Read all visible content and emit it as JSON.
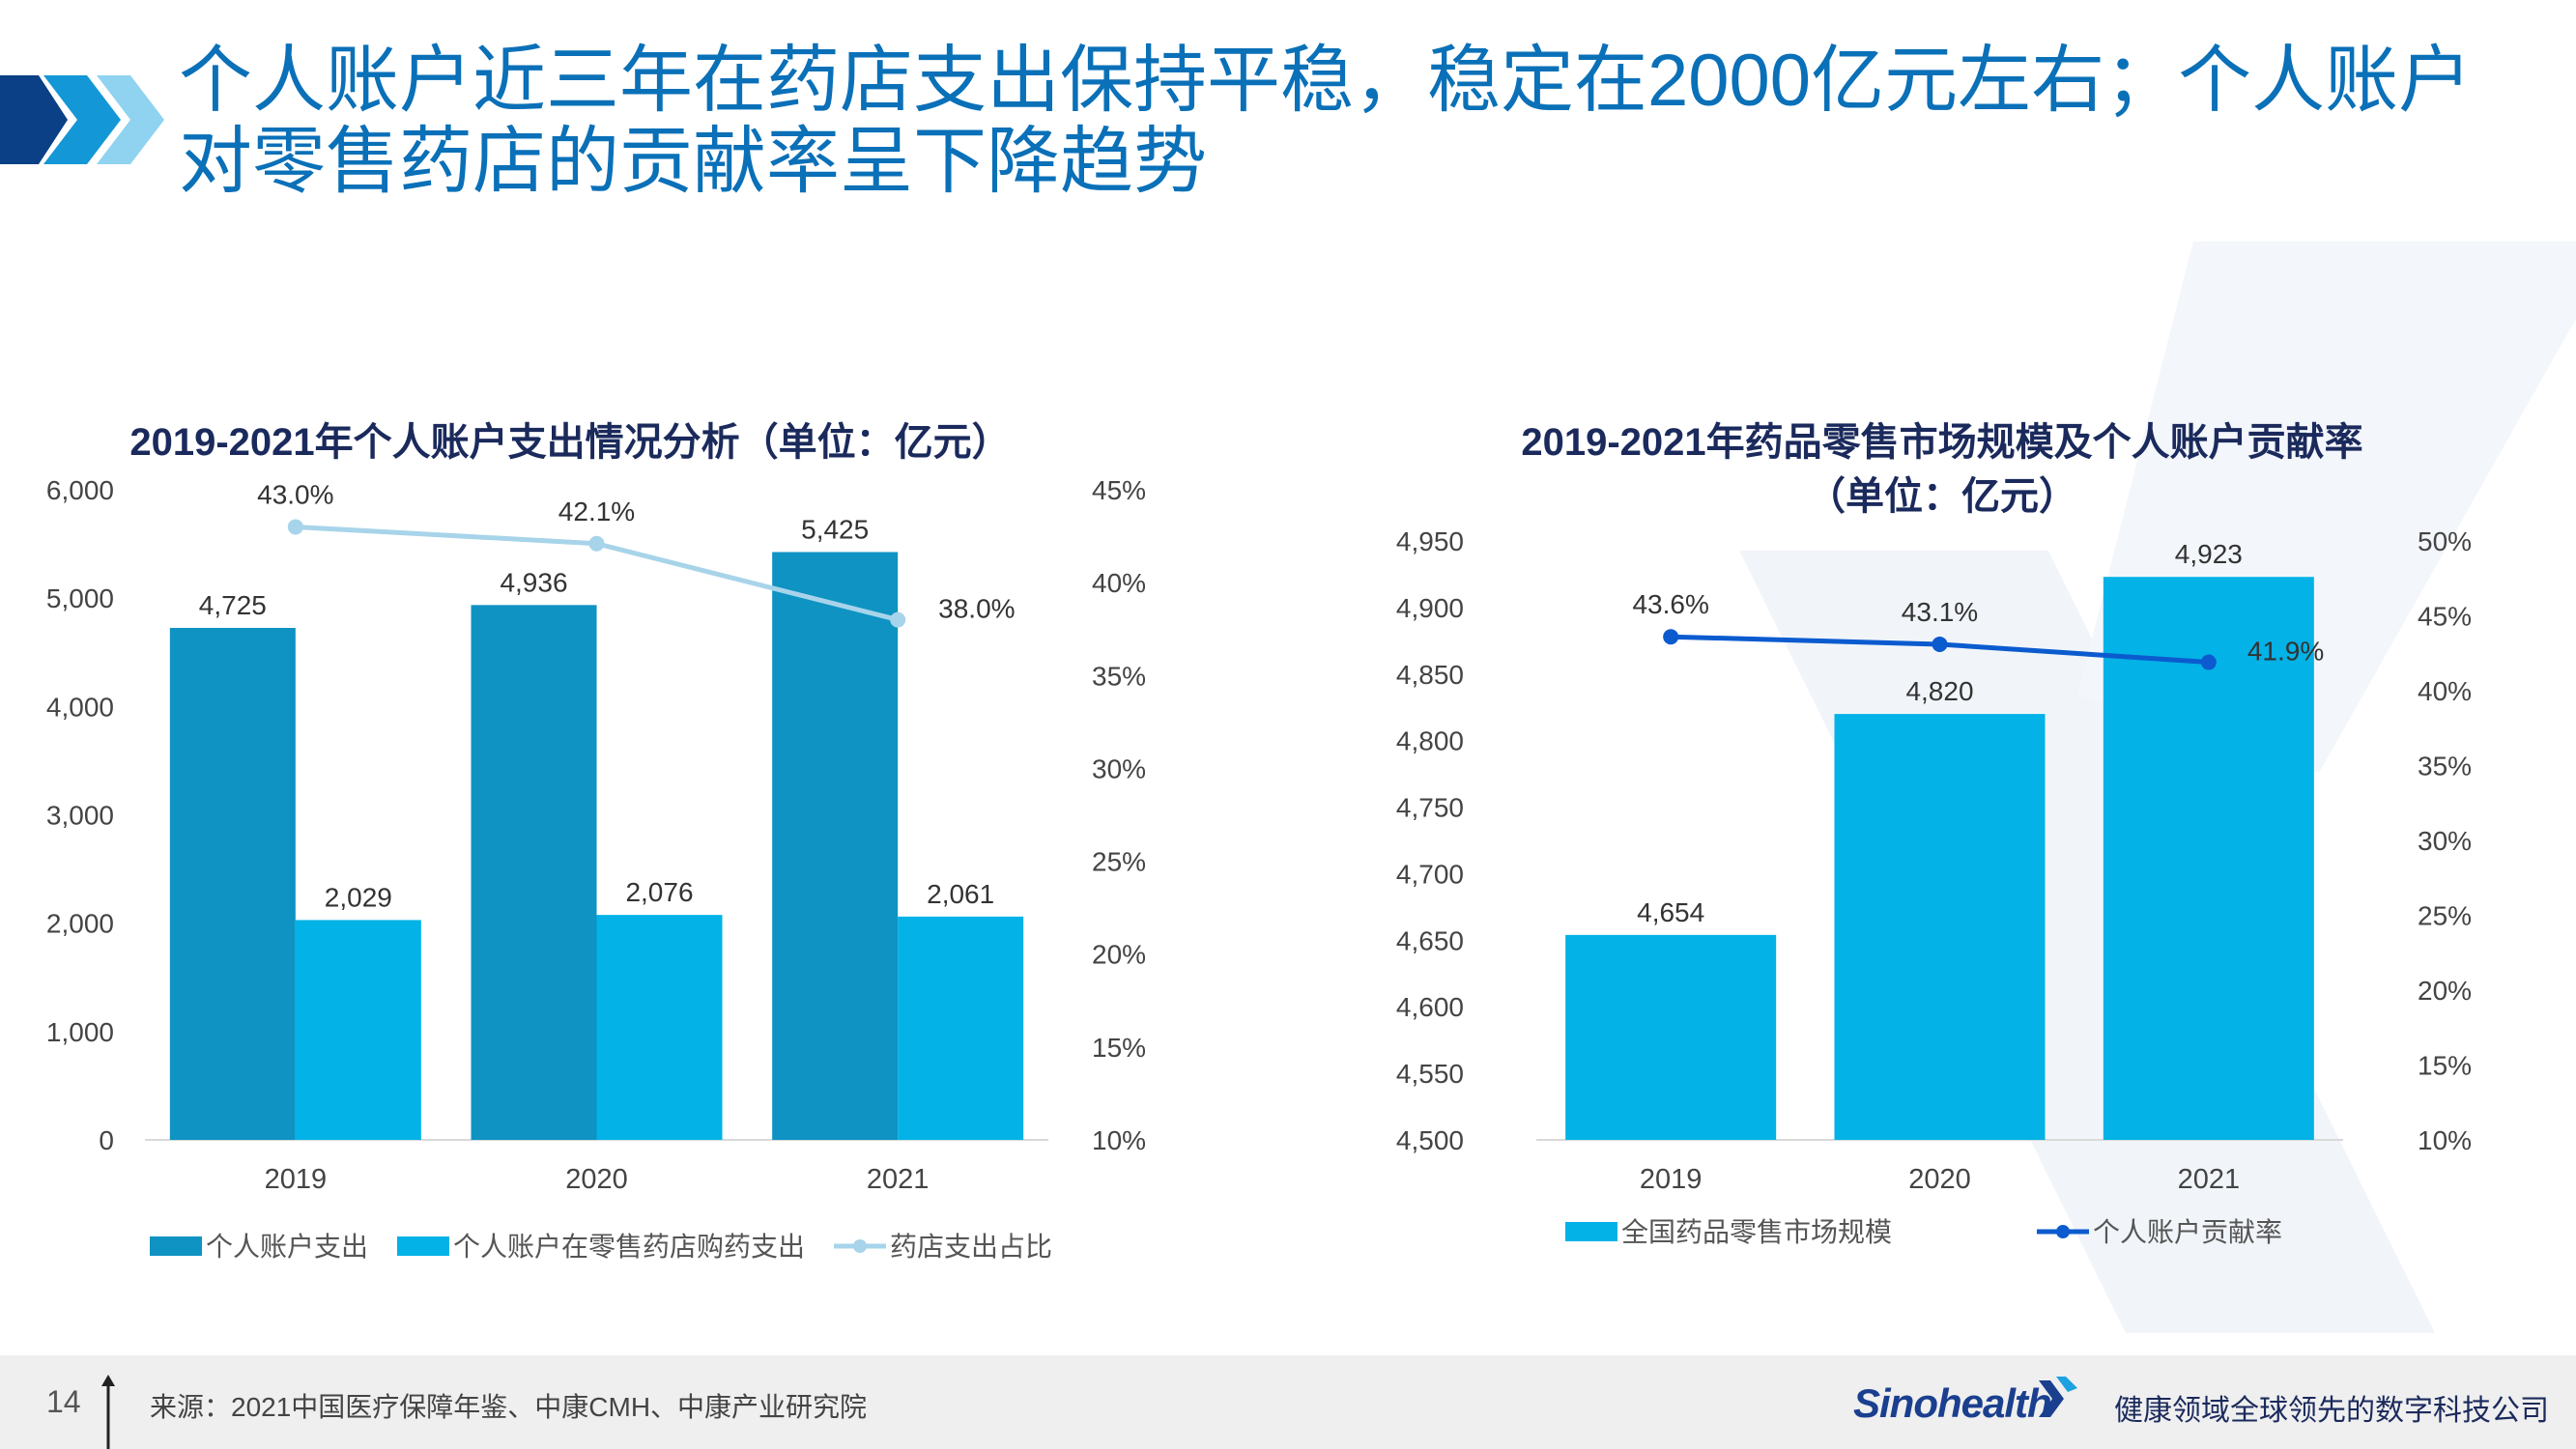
{
  "page": {
    "title": "个人账户近三年在药店支出保持平稳，稳定在2000亿元左右；个人账户对零售药店的贡献率呈下降趋势"
  },
  "chart_data": [
    {
      "type": "bar",
      "title": "2019-2021年个人账户支出情况分析（单位：亿元）",
      "categories": [
        "2019",
        "2020",
        "2021"
      ],
      "series": [
        {
          "name": "个人账户支出",
          "type": "bar",
          "axis": "left",
          "color": "#0e93c3",
          "values": [
            4725,
            4936,
            5425
          ],
          "labels": [
            "4,725",
            "4,936",
            "5,425"
          ]
        },
        {
          "name": "个人账户在零售药店购药支出",
          "type": "bar",
          "axis": "left",
          "color": "#03b2e6",
          "values": [
            2029,
            2076,
            2061
          ],
          "labels": [
            "2,029",
            "2,076",
            "2,061"
          ]
        },
        {
          "name": "药店支出占比",
          "type": "line",
          "axis": "right",
          "color": "#a7d4ea",
          "values": [
            0.43,
            0.421,
            0.38
          ],
          "labels": [
            "43.0%",
            "42.1%",
            "38.0%"
          ]
        }
      ],
      "ylim": [
        0,
        6000
      ],
      "yticks": [
        "0",
        "1,000",
        "2,000",
        "3,000",
        "4,000",
        "5,000",
        "6,000"
      ],
      "y2lim": [
        0.1,
        0.45
      ],
      "y2ticks": [
        "10%",
        "15%",
        "20%",
        "25%",
        "30%",
        "35%",
        "40%",
        "45%"
      ],
      "xlabel": "",
      "ylabel": "",
      "legend": "bottom",
      "grid": false
    },
    {
      "type": "bar",
      "title": "2019-2021年药品零售市场规模及个人账户贡献率",
      "subtitle": "（单位：亿元）",
      "categories": [
        "2019",
        "2020",
        "2021"
      ],
      "series": [
        {
          "name": "全国药品零售市场规模",
          "type": "bar",
          "axis": "left",
          "color": "#03b2e6",
          "values": [
            4654,
            4820,
            4923
          ],
          "labels": [
            "4,654",
            "4,820",
            "4,923"
          ]
        },
        {
          "name": "个人账户贡献率",
          "type": "line",
          "axis": "right",
          "color": "#0b5bcf",
          "values": [
            0.436,
            0.431,
            0.419
          ],
          "labels": [
            "43.6%",
            "43.1%",
            "41.9%"
          ]
        }
      ],
      "ylim": [
        4500,
        4950
      ],
      "yticks": [
        "4,500",
        "4,550",
        "4,600",
        "4,650",
        "4,700",
        "4,750",
        "4,800",
        "4,850",
        "4,900",
        "4,950"
      ],
      "y2lim": [
        0.1,
        0.5
      ],
      "y2ticks": [
        "10%",
        "15%",
        "20%",
        "25%",
        "30%",
        "35%",
        "40%",
        "45%",
        "50%"
      ],
      "xlabel": "",
      "ylabel": "",
      "legend": "bottom",
      "grid": false
    }
  ],
  "footer": {
    "page_number": "14",
    "source": "来源：2021中国医疗保障年鉴、中康CMH、中康产业研究院",
    "brand": "Sinohealth",
    "tagline": "健康领域全球领先的数字科技公司"
  },
  "colors": {
    "title_blue": "#0a70b8",
    "navy": "#1b2a5c",
    "bar_dark": "#0e93c3",
    "bar_light": "#03b2e6",
    "line_light": "#a7d4ea",
    "line_dark": "#0b5bcf"
  }
}
